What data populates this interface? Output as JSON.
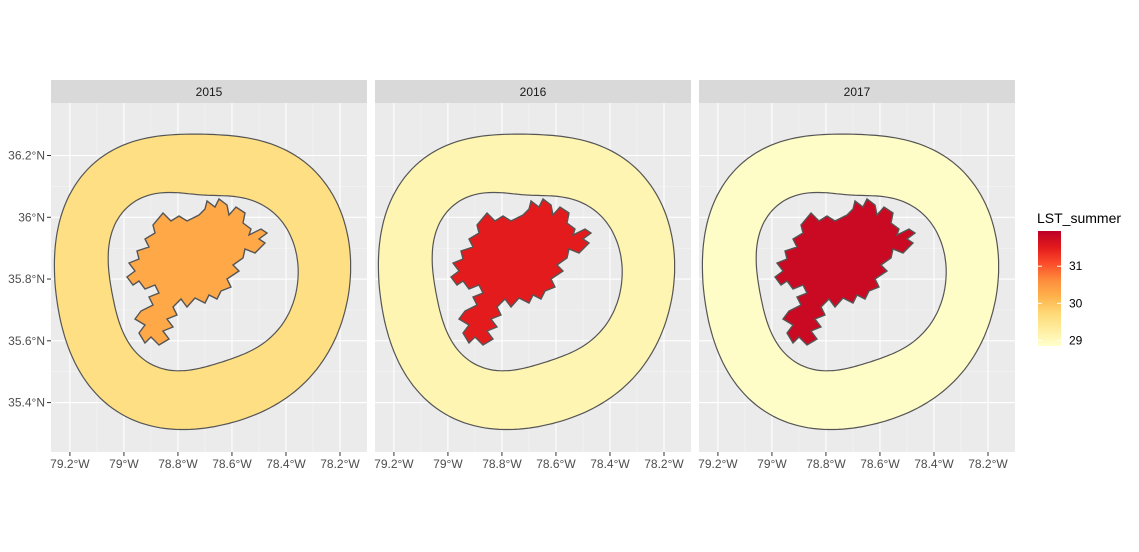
{
  "chart_data": {
    "type": "choropleth",
    "facets": [
      {
        "label": "2015",
        "city_value": 30.3,
        "buffer_value": 29.6
      },
      {
        "label": "2016",
        "city_value": 31.5,
        "buffer_value": 29.1
      },
      {
        "label": "2017",
        "city_value": 31.8,
        "buffer_value": 28.9
      }
    ],
    "x_ticks": [
      "79.2°W",
      "79°W",
      "78.8°W",
      "78.6°W",
      "78.4°W",
      "78.2°W"
    ],
    "x_tick_values": [
      -79.2,
      -79.0,
      -78.8,
      -78.6,
      -78.4,
      -78.2
    ],
    "y_ticks": [
      "35.4°N",
      "35.6°N",
      "35.8°N",
      "36°N",
      "36.2°N"
    ],
    "y_tick_values": [
      35.4,
      35.6,
      35.8,
      36.0,
      36.2
    ],
    "xlim": [
      -79.27,
      -78.1
    ],
    "ylim": [
      35.24,
      36.37
    ],
    "legend": {
      "title": "LST_summer",
      "breaks": [
        "29",
        "30",
        "31"
      ],
      "break_values": [
        29,
        30,
        31
      ],
      "range": [
        28.85,
        31.95
      ],
      "palette": [
        "#ffffcc",
        "#ffeda0",
        "#fed976",
        "#feb24c",
        "#fd8d3c",
        "#fc4e2a",
        "#e31a1c",
        "#bd0026"
      ],
      "position": "right"
    },
    "grid": true,
    "panel_background": "#ebebeb",
    "strip_background": "#d9d9d9"
  }
}
